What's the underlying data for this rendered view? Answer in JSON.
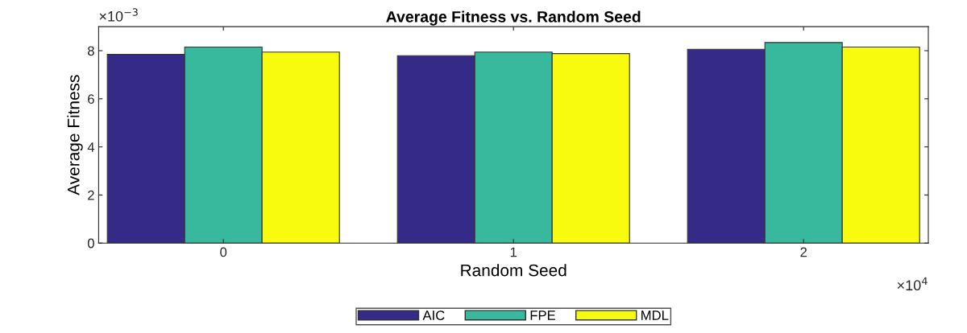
{
  "chart_data": {
    "type": "bar",
    "title": "Average Fitness vs. Random Seed",
    "xlabel": "Random Seed",
    "ylabel": "Average Fitness",
    "x": [
      0,
      1,
      2
    ],
    "series": [
      {
        "name": "AIC",
        "color": "#352a87",
        "values": [
          7.85,
          7.79,
          8.06
        ]
      },
      {
        "name": "FPE",
        "color": "#38b99e",
        "values": [
          8.15,
          7.94,
          8.34
        ]
      },
      {
        "name": "MDL",
        "color": "#f9fb0e",
        "values": [
          7.94,
          7.88,
          8.15
        ]
      }
    ],
    "xlim": [
      -0.43,
      2.43
    ],
    "xticks": [
      0,
      1,
      2
    ],
    "ylim": [
      0,
      9
    ],
    "yticks": [
      0,
      2,
      4,
      6,
      8
    ],
    "annotations": [
      "×10$^{−3}$",
      "×10$^{4}$"
    ],
    "legend": "bottom",
    "grid": false
  }
}
